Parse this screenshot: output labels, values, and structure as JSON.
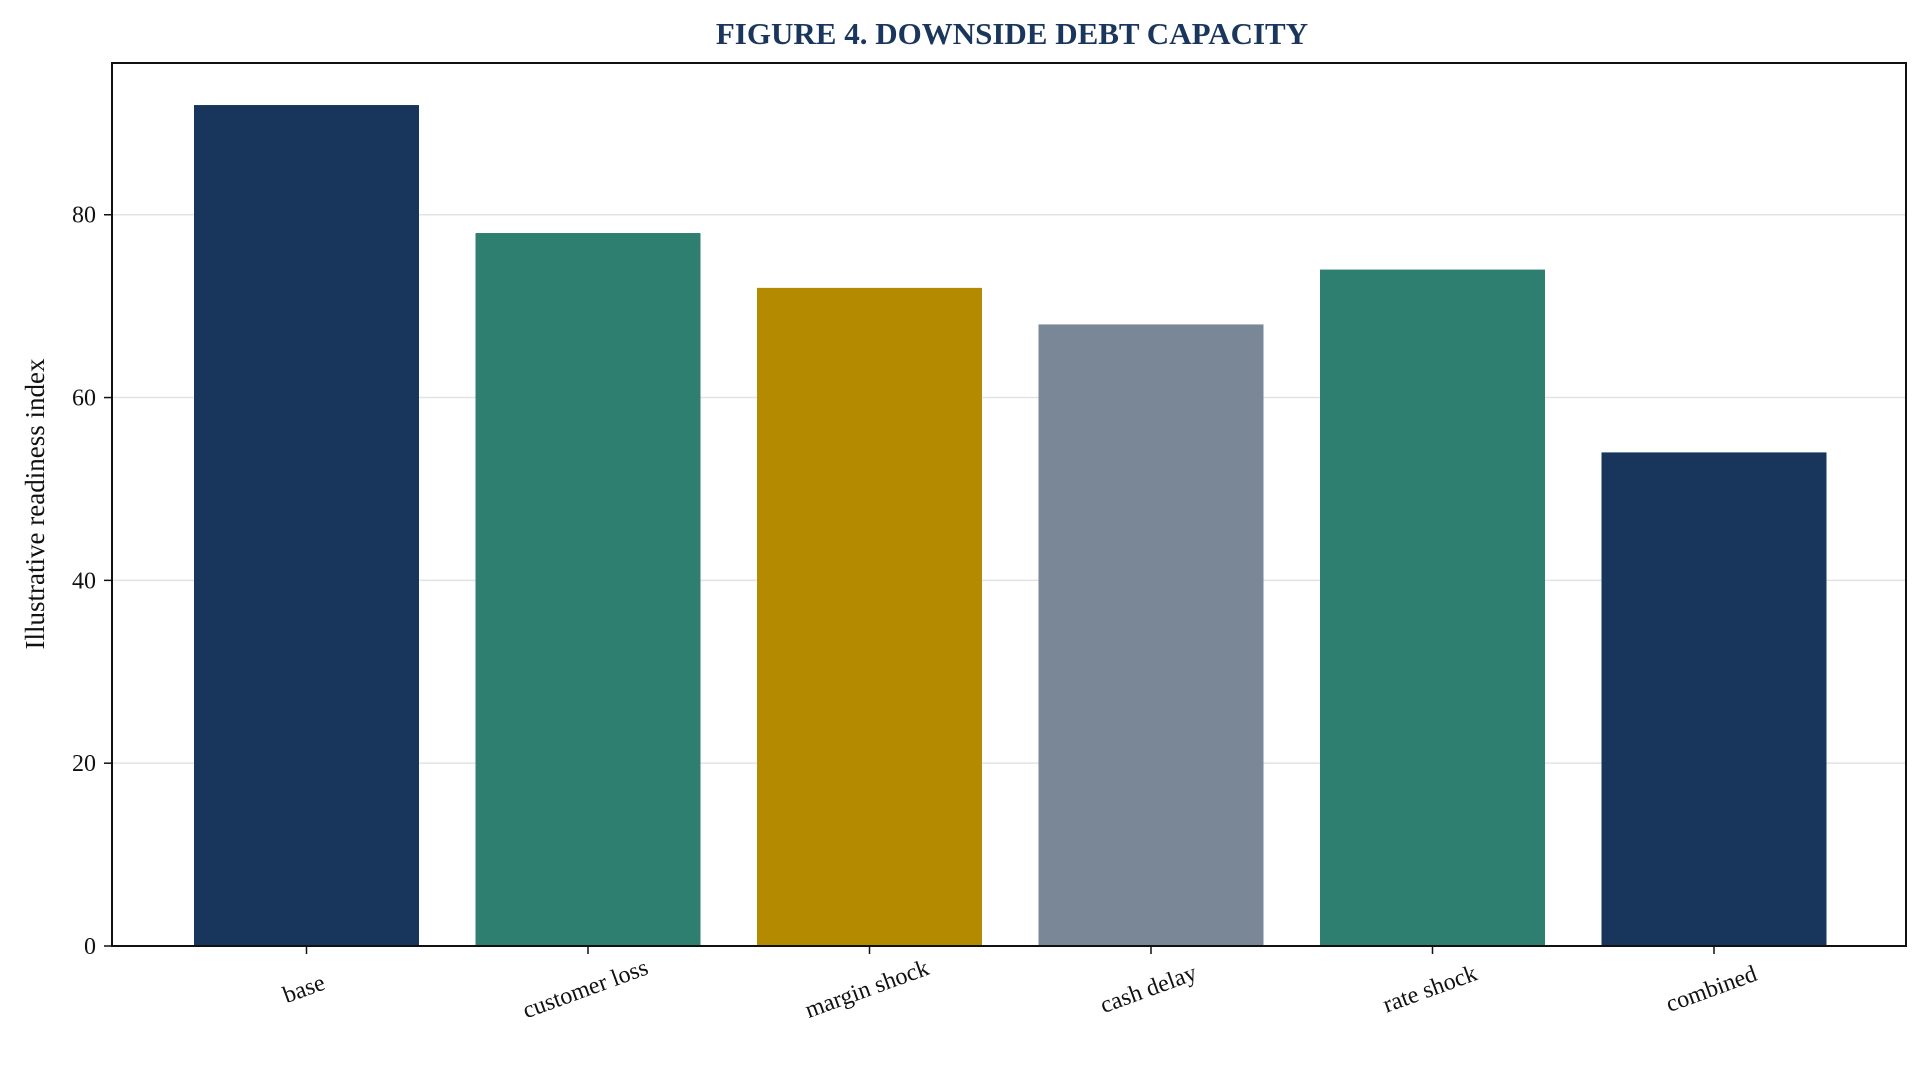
{
  "chart_data": {
    "type": "bar",
    "title": "FIGURE 4. DOWNSIDE DEBT CAPACITY",
    "xlabel": "",
    "ylabel": "Illustrative readiness index",
    "categories": [
      "base",
      "customer loss",
      "margin shock",
      "cash delay",
      "rate shock",
      "combined"
    ],
    "values": [
      92,
      78,
      72,
      68,
      74,
      54
    ],
    "colors": [
      "#18365c",
      "#2e7f70",
      "#b38a00",
      "#7a8796",
      "#2e7f70",
      "#18365c"
    ],
    "ylim": [
      0,
      96.6
    ],
    "yticks": [
      0,
      20,
      40,
      60,
      80
    ],
    "grid": true,
    "legend": "none"
  }
}
